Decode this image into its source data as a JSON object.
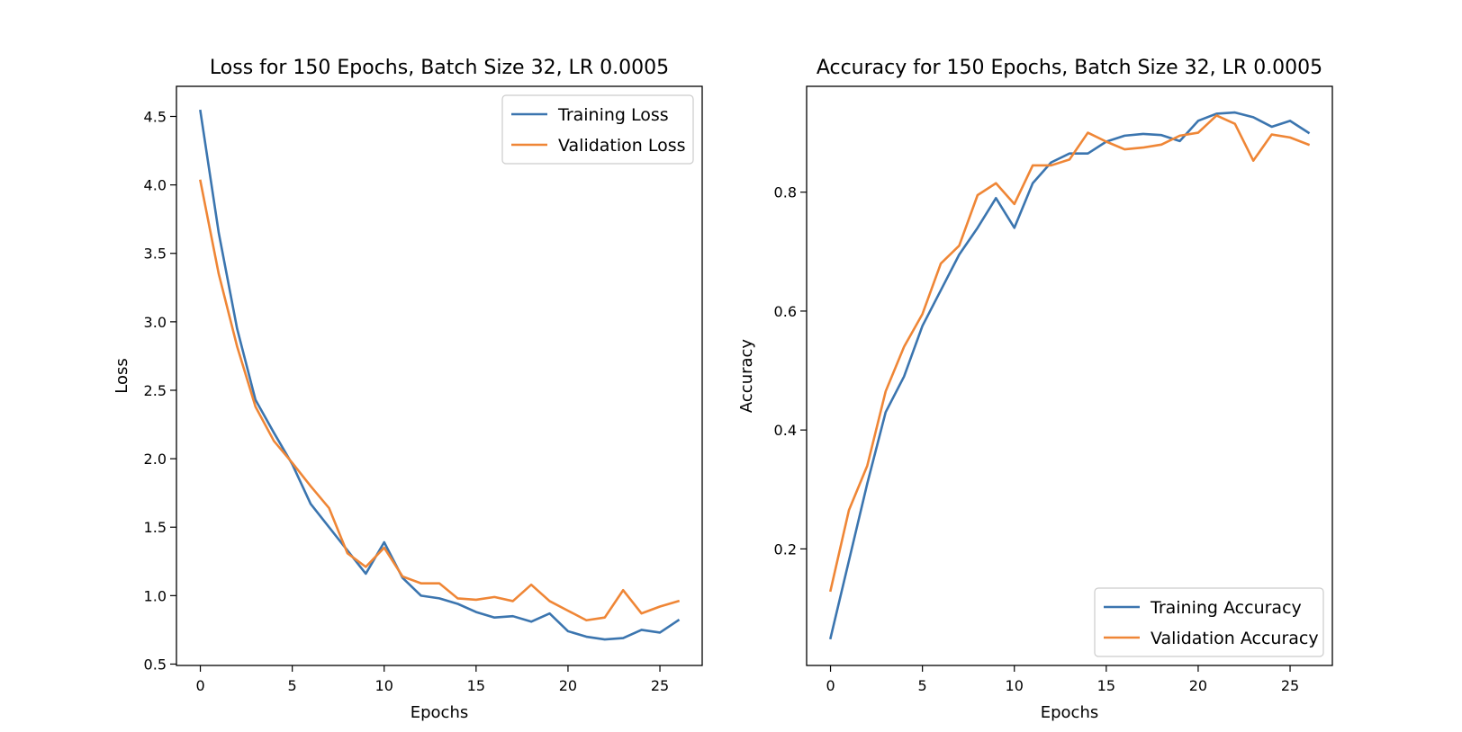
{
  "colors": {
    "training": "#3b75af",
    "validation": "#ef8636"
  },
  "chart_data": [
    {
      "type": "line",
      "title": "Loss for 150 Epochs, Batch Size 32, LR 0.0005",
      "xlabel": "Epochs",
      "ylabel": "Loss",
      "xlim": [
        -1.3,
        27.3
      ],
      "ylim": [
        0.49,
        4.72
      ],
      "xticks": [
        0,
        5,
        10,
        15,
        20,
        25
      ],
      "yticks": [
        0.5,
        1.0,
        1.5,
        2.0,
        2.5,
        3.0,
        3.5,
        4.0,
        4.5
      ],
      "legend": "top-right",
      "grid": false,
      "x": [
        0,
        1,
        2,
        3,
        4,
        5,
        6,
        7,
        8,
        9,
        10,
        11,
        12,
        13,
        14,
        15,
        16,
        17,
        18,
        19,
        20,
        21,
        22,
        23,
        24,
        25,
        26
      ],
      "series": [
        {
          "name": "Training Loss",
          "color": "#3b75af",
          "values": [
            4.54,
            3.65,
            2.95,
            2.43,
            2.19,
            1.96,
            1.67,
            1.5,
            1.33,
            1.16,
            1.39,
            1.13,
            1.0,
            0.98,
            0.94,
            0.88,
            0.84,
            0.85,
            0.81,
            0.87,
            0.74,
            0.7,
            0.68,
            0.69,
            0.75,
            0.73,
            0.82
          ]
        },
        {
          "name": "Validation Loss",
          "color": "#ef8636",
          "values": [
            4.03,
            3.35,
            2.82,
            2.38,
            2.13,
            1.97,
            1.8,
            1.64,
            1.31,
            1.21,
            1.35,
            1.14,
            1.09,
            1.09,
            0.98,
            0.97,
            0.99,
            0.96,
            1.08,
            0.96,
            0.89,
            0.82,
            0.84,
            1.04,
            0.87,
            0.92,
            0.96
          ]
        }
      ]
    },
    {
      "type": "line",
      "title": "Accuracy for 150 Epochs, Batch Size 32, LR 0.0005",
      "xlabel": "Epochs",
      "ylabel": "Accuracy",
      "xlim": [
        -1.3,
        27.3
      ],
      "ylim": [
        0.004,
        0.978
      ],
      "xticks": [
        0,
        5,
        10,
        15,
        20,
        25
      ],
      "yticks": [
        0.2,
        0.4,
        0.6,
        0.8
      ],
      "legend": "bottom-right",
      "grid": false,
      "x": [
        0,
        1,
        2,
        3,
        4,
        5,
        6,
        7,
        8,
        9,
        10,
        11,
        12,
        13,
        14,
        15,
        16,
        17,
        18,
        19,
        20,
        21,
        22,
        23,
        24,
        25,
        26
      ],
      "series": [
        {
          "name": "Training Accuracy",
          "color": "#3b75af",
          "values": [
            0.05,
            0.18,
            0.31,
            0.43,
            0.49,
            0.575,
            0.635,
            0.695,
            0.74,
            0.79,
            0.74,
            0.815,
            0.85,
            0.865,
            0.865,
            0.885,
            0.895,
            0.898,
            0.896,
            0.886,
            0.92,
            0.932,
            0.934,
            0.926,
            0.91,
            0.92,
            0.9
          ]
        },
        {
          "name": "Validation Accuracy",
          "color": "#ef8636",
          "values": [
            0.13,
            0.265,
            0.34,
            0.465,
            0.54,
            0.595,
            0.68,
            0.71,
            0.795,
            0.815,
            0.78,
            0.845,
            0.845,
            0.855,
            0.9,
            0.885,
            0.872,
            0.875,
            0.88,
            0.895,
            0.9,
            0.929,
            0.915,
            0.853,
            0.897,
            0.892,
            0.88
          ]
        }
      ]
    }
  ]
}
